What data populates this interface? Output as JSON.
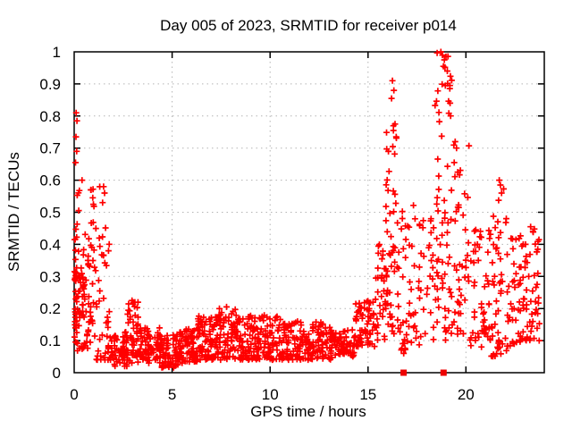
{
  "title": "Day 005 of 2023, SRMTID for receiver p014",
  "axes": {
    "x_label": "GPS time / hours",
    "y_label": "SRMTID / TECUs",
    "x_tick_values": [
      0,
      5,
      10,
      15,
      20
    ],
    "x_tick_labels": [
      "0",
      "5",
      "10",
      "15",
      "20"
    ],
    "y_tick_values": [
      0,
      0.1,
      0.2,
      0.3,
      0.4,
      0.5,
      0.6,
      0.7,
      0.8,
      0.9,
      1
    ],
    "y_tick_labels": [
      "0",
      "0.1",
      "0.2",
      "0.3",
      "0.4",
      "0.5",
      "0.6",
      "0.7",
      "0.8",
      "0.9",
      "1"
    ],
    "x_grid_values": [
      5,
      10,
      15,
      20
    ],
    "y_grid_values": [
      0.1,
      0.2,
      0.3,
      0.4,
      0.5,
      0.6,
      0.7,
      0.8,
      0.9
    ]
  },
  "colors": {
    "marker": "#ff0000",
    "flag_marker": "#ee0000",
    "grid": "#b4b4b4",
    "axis": "#000000",
    "background": "#ffffff",
    "text": "#000000"
  },
  "chart_data": {
    "type": "scatter",
    "title": "Day 005 of 2023, SRMTID for receiver p014",
    "xlabel": "GPS time / hours",
    "ylabel": "SRMTID / TECUs",
    "xlim": [
      0,
      24
    ],
    "ylim": [
      0,
      1
    ],
    "grid": true,
    "legend": "none",
    "marker": "plus",
    "marker_size_px": 7,
    "flag_marker": "filled-square",
    "flag_size_px": 7,
    "seed": 20230105,
    "segment_format": [
      "x_start_hr",
      "x_end_hr",
      "y_min_TECU",
      "y_max_TECU",
      "n_points",
      "low_bias_exponent"
    ],
    "cloud_segments": [
      [
        0.02,
        0.35,
        0.06,
        0.62,
        40,
        1.7
      ],
      [
        0.02,
        0.55,
        0.16,
        0.32,
        30,
        1.1
      ],
      [
        0.3,
        0.75,
        0.07,
        0.44,
        24,
        1.5
      ],
      [
        0.7,
        1.1,
        0.09,
        0.58,
        30,
        1.4
      ],
      [
        1.1,
        1.9,
        0.04,
        0.58,
        45,
        2.1
      ],
      [
        1.9,
        2.7,
        0.02,
        0.13,
        55,
        1.2
      ],
      [
        2.7,
        3.3,
        0.03,
        0.22,
        50,
        1.5
      ],
      [
        3.3,
        4.4,
        0.03,
        0.14,
        80,
        1.25
      ],
      [
        4.4,
        5.3,
        0.015,
        0.12,
        70,
        1.25
      ],
      [
        5.3,
        6.3,
        0.03,
        0.14,
        75,
        1.25
      ],
      [
        6.3,
        7.1,
        0.04,
        0.18,
        70,
        1.3
      ],
      [
        7.1,
        8.3,
        0.04,
        0.2,
        90,
        1.3
      ],
      [
        8.3,
        9.3,
        0.04,
        0.18,
        80,
        1.3
      ],
      [
        9.3,
        10.6,
        0.04,
        0.18,
        90,
        1.3
      ],
      [
        10.6,
        12.1,
        0.04,
        0.16,
        100,
        1.3
      ],
      [
        12.1,
        13.3,
        0.04,
        0.16,
        80,
        1.3
      ],
      [
        13.3,
        14.3,
        0.05,
        0.14,
        60,
        1.25
      ],
      [
        14.3,
        15.4,
        0.08,
        0.23,
        65,
        1.3
      ],
      [
        15.4,
        16.0,
        0.1,
        0.4,
        35,
        1.3
      ],
      [
        15.9,
        16.5,
        0.12,
        0.78,
        45,
        1.5
      ],
      [
        16.5,
        17.4,
        0.06,
        0.55,
        45,
        1.5
      ],
      [
        17.4,
        18.35,
        0.08,
        0.5,
        35,
        1.35
      ],
      [
        18.4,
        19.3,
        0.1,
        1.0,
        70,
        1.25
      ],
      [
        19.3,
        20.2,
        0.12,
        0.72,
        40,
        1.6
      ],
      [
        20.2,
        21.3,
        0.08,
        0.45,
        55,
        1.45
      ],
      [
        21.3,
        22.1,
        0.05,
        0.6,
        50,
        1.5
      ],
      [
        22.1,
        23.0,
        0.08,
        0.47,
        50,
        1.35
      ],
      [
        23.0,
        23.8,
        0.1,
        0.46,
        45,
        1.35
      ]
    ],
    "outlier_points": [
      [
        0.1,
        0.81
      ],
      [
        0.14,
        0.785
      ],
      [
        0.09,
        0.735
      ],
      [
        0.13,
        0.69
      ],
      [
        0.07,
        0.655
      ],
      [
        0.4,
        0.6
      ],
      [
        0.85,
        0.57
      ],
      [
        0.95,
        0.545
      ],
      [
        1.5,
        0.58
      ],
      [
        1.55,
        0.56
      ],
      [
        1.45,
        0.53
      ],
      [
        16.25,
        0.91
      ],
      [
        16.32,
        0.88
      ],
      [
        16.2,
        0.855
      ],
      [
        16.38,
        0.775
      ],
      [
        16.3,
        0.755
      ],
      [
        16.44,
        0.735
      ],
      [
        18.72,
        1.0
      ],
      [
        18.8,
        0.99
      ],
      [
        18.9,
        0.975
      ],
      [
        18.98,
        0.985
      ],
      [
        18.85,
        0.955
      ],
      [
        19.05,
        0.94
      ],
      [
        19.45,
        0.72
      ],
      [
        19.52,
        0.7
      ],
      [
        19.4,
        0.655
      ],
      [
        19.58,
        0.625
      ],
      [
        21.7,
        0.6
      ],
      [
        21.76,
        0.585
      ],
      [
        21.82,
        0.56
      ],
      [
        23.3,
        0.455
      ],
      [
        23.42,
        0.44
      ],
      [
        2.95,
        0.225
      ],
      [
        7.78,
        0.205
      ],
      [
        9.6,
        0.175
      ],
      [
        11.4,
        0.16
      ]
    ],
    "flagged_points": [
      [
        16.82,
        0.0
      ],
      [
        18.86,
        0.0
      ]
    ]
  }
}
